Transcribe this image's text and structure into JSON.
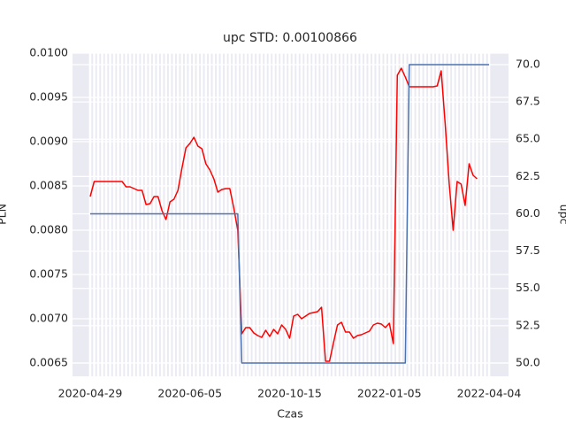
{
  "chart_data": {
    "type": "line",
    "title": "upc STD: 0.00100866",
    "xlabel": "Czas",
    "ylabel": "PLN",
    "y2label": "upc",
    "grid": true,
    "background": "#eaeaf2",
    "categories": [
      "2020-04-29",
      null,
      null,
      null,
      null,
      null,
      null,
      null,
      null,
      null,
      null,
      null,
      null,
      null,
      null,
      null,
      null,
      null,
      null,
      null,
      null,
      null,
      null,
      null,
      null,
      "2020-06-05",
      null,
      null,
      null,
      null,
      null,
      null,
      null,
      null,
      null,
      null,
      null,
      null,
      null,
      null,
      null,
      null,
      null,
      null,
      null,
      null,
      null,
      null,
      null,
      null,
      "2020-10-15",
      null,
      null,
      null,
      null,
      null,
      null,
      null,
      null,
      null,
      null,
      null,
      null,
      null,
      null,
      null,
      null,
      null,
      null,
      null,
      null,
      null,
      null,
      null,
      null,
      "2022-01-05",
      null,
      null,
      null,
      null,
      null,
      null,
      null,
      null,
      null,
      null,
      null,
      null,
      null,
      null,
      null,
      null,
      null,
      null,
      null,
      null,
      null,
      null,
      null,
      null,
      "2022-04-04"
    ],
    "ylim": [
      0.00635,
      0.01
    ],
    "yticks": [
      0.0065,
      {
        "value": 0.007,
        "label": "0.0070"
      },
      0.0075,
      {
        "value": 0.008,
        "label": "0.0080"
      },
      0.0085,
      {
        "value": 0.009,
        "label": "0.0090"
      },
      0.0095,
      {
        "value": 0.01,
        "label": "0.0100"
      }
    ],
    "y2lim": [
      49.11,
      70.77
    ],
    "y2ticks": [
      {
        "value": 50,
        "label": "50.0"
      },
      52.5,
      {
        "value": 55,
        "label": "55.0"
      },
      57.5,
      {
        "value": 60,
        "label": "60.0"
      },
      62.5,
      {
        "value": 65,
        "label": "65.0"
      },
      67.5,
      {
        "value": 70,
        "label": "70.0"
      }
    ],
    "series": [
      {
        "color": "#ff0000",
        "values": [
          0.00838,
          0.00855,
          0.00855,
          0.00855,
          0.00855,
          0.00855,
          0.00855,
          0.00855,
          0.00855,
          0.00849,
          0.00849,
          0.00847,
          0.00845,
          0.00845,
          0.00829,
          0.0083,
          0.00838,
          0.00838,
          0.00822,
          0.00812,
          0.00832,
          0.00835,
          0.00845,
          0.0087,
          0.00893,
          0.00898,
          0.00905,
          0.00895,
          0.00892,
          0.00875,
          0.00868,
          0.00858,
          0.00843,
          0.00846,
          0.00847,
          0.00847,
          0.00825,
          0.008,
          0.00683,
          0.0069,
          0.0069,
          0.00684,
          0.00681,
          0.00679,
          0.00687,
          0.0068,
          0.00688,
          0.00683,
          0.00693,
          0.00688,
          0.00678,
          0.00703,
          0.00705,
          0.007,
          0.00703,
          0.00706,
          0.00707,
          0.00708,
          0.00713,
          0.00652,
          0.00652,
          0.00673,
          0.00693,
          0.00696,
          0.00685,
          0.00685,
          0.00678,
          0.00681,
          0.00682,
          0.00684,
          0.00686,
          0.00693,
          0.00695,
          0.00694,
          0.0069,
          0.00695,
          0.00672,
          0.00975,
          0.00983,
          0.00973,
          0.00962,
          0.00962,
          0.00962,
          0.00962,
          0.00962,
          0.00962,
          0.00962,
          0.00963,
          0.0098,
          0.0092,
          0.00853,
          0.008,
          0.00855,
          0.00852,
          0.00828,
          0.00875,
          0.00862,
          0.00858,
          null,
          null,
          null
        ]
      },
      {
        "color": "#4c72b0",
        "axis": "y2",
        "values": [
          60,
          60,
          60,
          60,
          60,
          60,
          60,
          60,
          60,
          60,
          60,
          60,
          60,
          60,
          60,
          60,
          60,
          60,
          60,
          60,
          60,
          60,
          60,
          60,
          60,
          60,
          60,
          60,
          60,
          60,
          60,
          60,
          60,
          60,
          60,
          60,
          60,
          60,
          50,
          50,
          50,
          50,
          50,
          50,
          50,
          50,
          50,
          50,
          50,
          50,
          50,
          50,
          50,
          50,
          50,
          50,
          50,
          50,
          50,
          50,
          50,
          50,
          50,
          50,
          50,
          50,
          50,
          50,
          50,
          50,
          50,
          50,
          50,
          50,
          50,
          50,
          50,
          50,
          50,
          50,
          70,
          70,
          70,
          70,
          70,
          70,
          70,
          70,
          70,
          70,
          70,
          70,
          70,
          70,
          70,
          70,
          70,
          70,
          70,
          70,
          70
        ]
      }
    ]
  }
}
